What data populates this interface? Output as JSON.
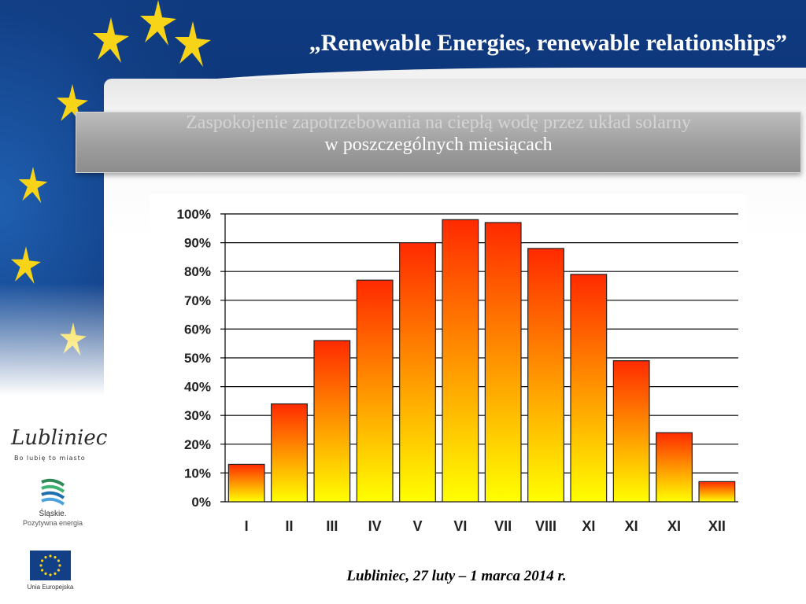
{
  "slide": {
    "title": "„Renewable Energies, renewable relationships”",
    "subtitle_line1": "Zaspokojenie zapotrzebowania na ciepłą wodę przez układ solarny",
    "subtitle_line2": "w poszczególnych miesiącach",
    "footer": "Lubliniec, 27 luty – 1 marca 2014 r."
  },
  "logos": {
    "lubliniec_text": "Lubliniec",
    "lubliniec_tagline": "Bo lubię to miasto",
    "slaskie_name": "Śląskie.",
    "slaskie_tagline": "Pozytywna energia",
    "eu_label": "Unia Europejska"
  },
  "colors": {
    "bar_top": "#ff2a00",
    "bar_bottom": "#ffff00",
    "eu_blue": "#123f86",
    "star_yellow": "#f7d417"
  },
  "chart_data": {
    "type": "bar",
    "categories": [
      "I",
      "II",
      "III",
      "IV",
      "V",
      "VI",
      "VII",
      "VIII",
      "XI",
      "XI",
      "XI",
      "XII"
    ],
    "values": [
      13,
      34,
      56,
      77,
      90,
      98,
      97,
      88,
      79,
      49,
      24,
      7
    ],
    "ylim": [
      0,
      100
    ],
    "yticks": [
      "0%",
      "10%",
      "20%",
      "30%",
      "40%",
      "50%",
      "60%",
      "70%",
      "80%",
      "90%",
      "100%"
    ],
    "grid": true,
    "legend": "none"
  }
}
